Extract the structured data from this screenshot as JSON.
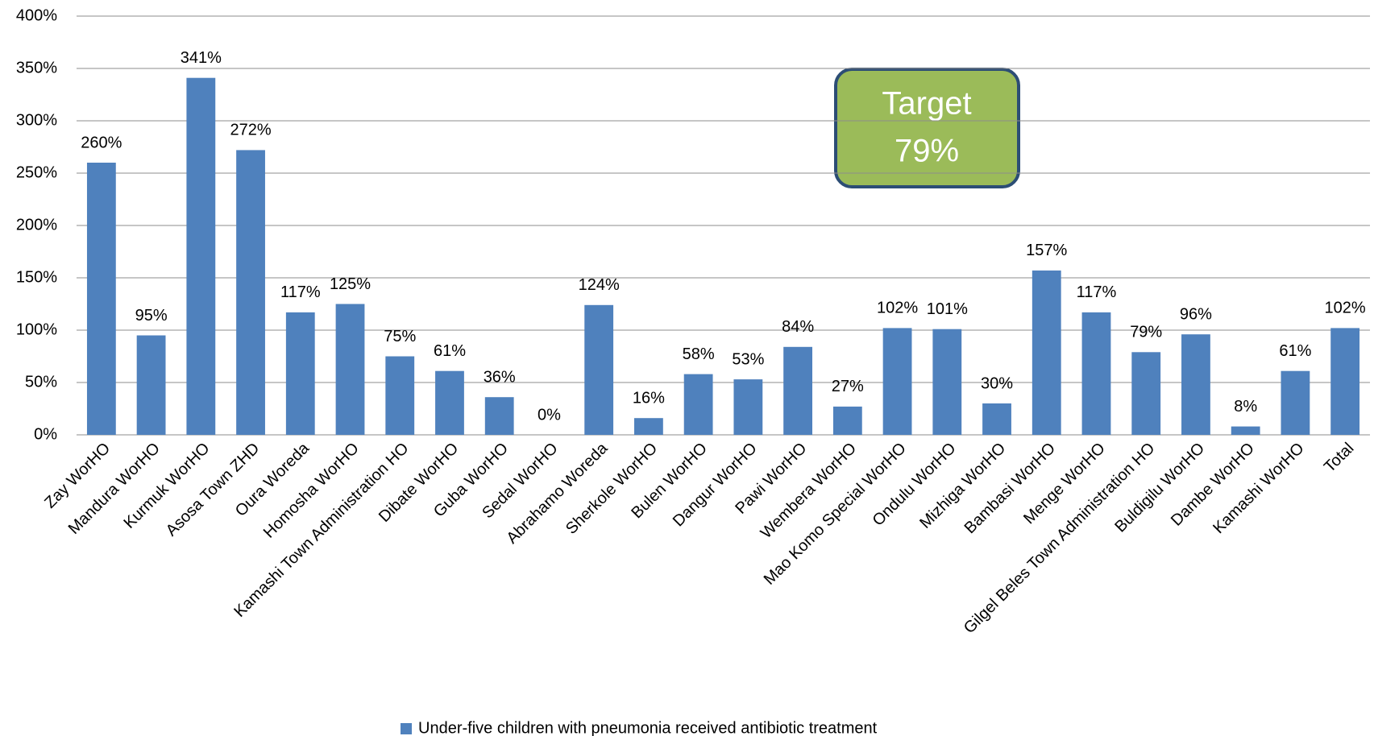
{
  "chart_data": {
    "type": "bar",
    "categories": [
      "Zay WorHO",
      "Mandura WorHO",
      "Kurmuk WorHO",
      "Asosa Town ZHD",
      "Oura Woreda",
      "Homosha WorHO",
      "Kamashi Town Administration HO",
      "Dibate WorHO",
      "Guba WorHO",
      "Sedal WorHO",
      "Abrahamo Woreda",
      "Sherkole WorHO",
      "Bulen WorHO",
      "Dangur WorHO",
      "Pawi WorHO",
      "Wembera WorHO",
      "Mao Komo Special WorHO",
      "Ondulu WorHO",
      "Mizhiga WorHO",
      "Bambasi WorHO",
      "Menge WorHO",
      "Gilgel Beles Town Administration HO",
      "Buldigilu WorHO",
      "Dambe WorHO",
      "Kamashi WorHO",
      "Total"
    ],
    "series": [
      {
        "name": "Under-five children with pneumonia received antibiotic treatment",
        "color": "#4f81bd",
        "values": [
          260,
          95,
          341,
          272,
          117,
          125,
          75,
          61,
          36,
          0,
          124,
          16,
          58,
          53,
          84,
          27,
          102,
          101,
          30,
          157,
          117,
          79,
          96,
          8,
          61,
          102
        ],
        "value_labels": [
          "260%",
          "95%",
          "341%",
          "272%",
          "117%",
          "125%",
          "75%",
          "61%",
          "36%",
          "0%",
          "124%",
          "16%",
          "58%",
          "53%",
          "84%",
          "27%",
          "102%",
          "101%",
          "30%",
          "157%",
          "117%",
          "79%",
          "96%",
          "8%",
          "61%",
          "102%"
        ]
      }
    ],
    "ylim": [
      0,
      400
    ],
    "yticks": [
      {
        "value": 0,
        "label": "0%"
      },
      {
        "value": 50,
        "label": "50%"
      },
      {
        "value": 100,
        "label": "100%"
      },
      {
        "value": 150,
        "label": "150%"
      },
      {
        "value": 200,
        "label": "200%"
      },
      {
        "value": 250,
        "label": "250%"
      },
      {
        "value": 300,
        "label": "300%"
      },
      {
        "value": 350,
        "label": "350%"
      },
      {
        "value": 400,
        "label": "400%"
      }
    ],
    "grid": true,
    "legend": "bottom",
    "annotation": {
      "text": "Target",
      "value": 79,
      "label": "79%"
    }
  }
}
